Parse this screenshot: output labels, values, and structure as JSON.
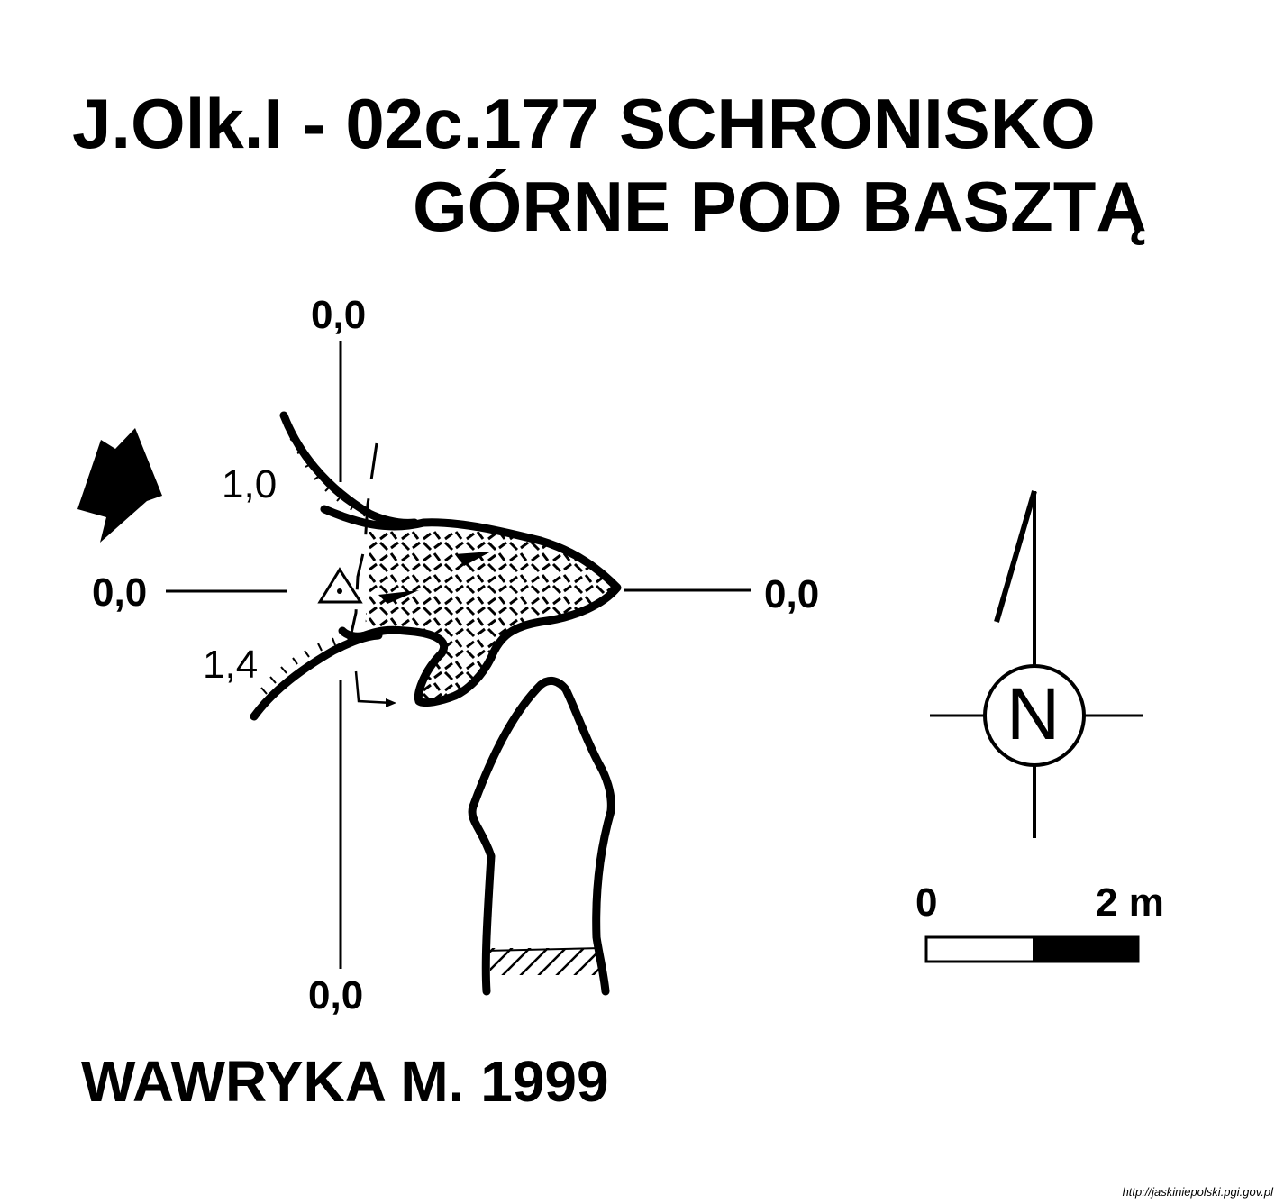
{
  "title": {
    "line1": "J.Olk.I - 02c.177  SCHRONISKO",
    "line2": "GÓRNE POD BASZTĄ"
  },
  "section_labels": {
    "top": "0,0",
    "left": "0,0",
    "right": "0,0",
    "bottom": "0,0"
  },
  "depth_labels": [
    "1,0",
    "1,4"
  ],
  "north": {
    "letter": "N",
    "icon": "north-arrow-icon"
  },
  "scale_bar": {
    "start": "0",
    "end": "2 m"
  },
  "author": "WAWRYKA M. 1999",
  "credit": "http://jaskiniepolski.pgi.gov.pl",
  "colors": {
    "ink": "#000000",
    "paper": "#ffffff"
  }
}
